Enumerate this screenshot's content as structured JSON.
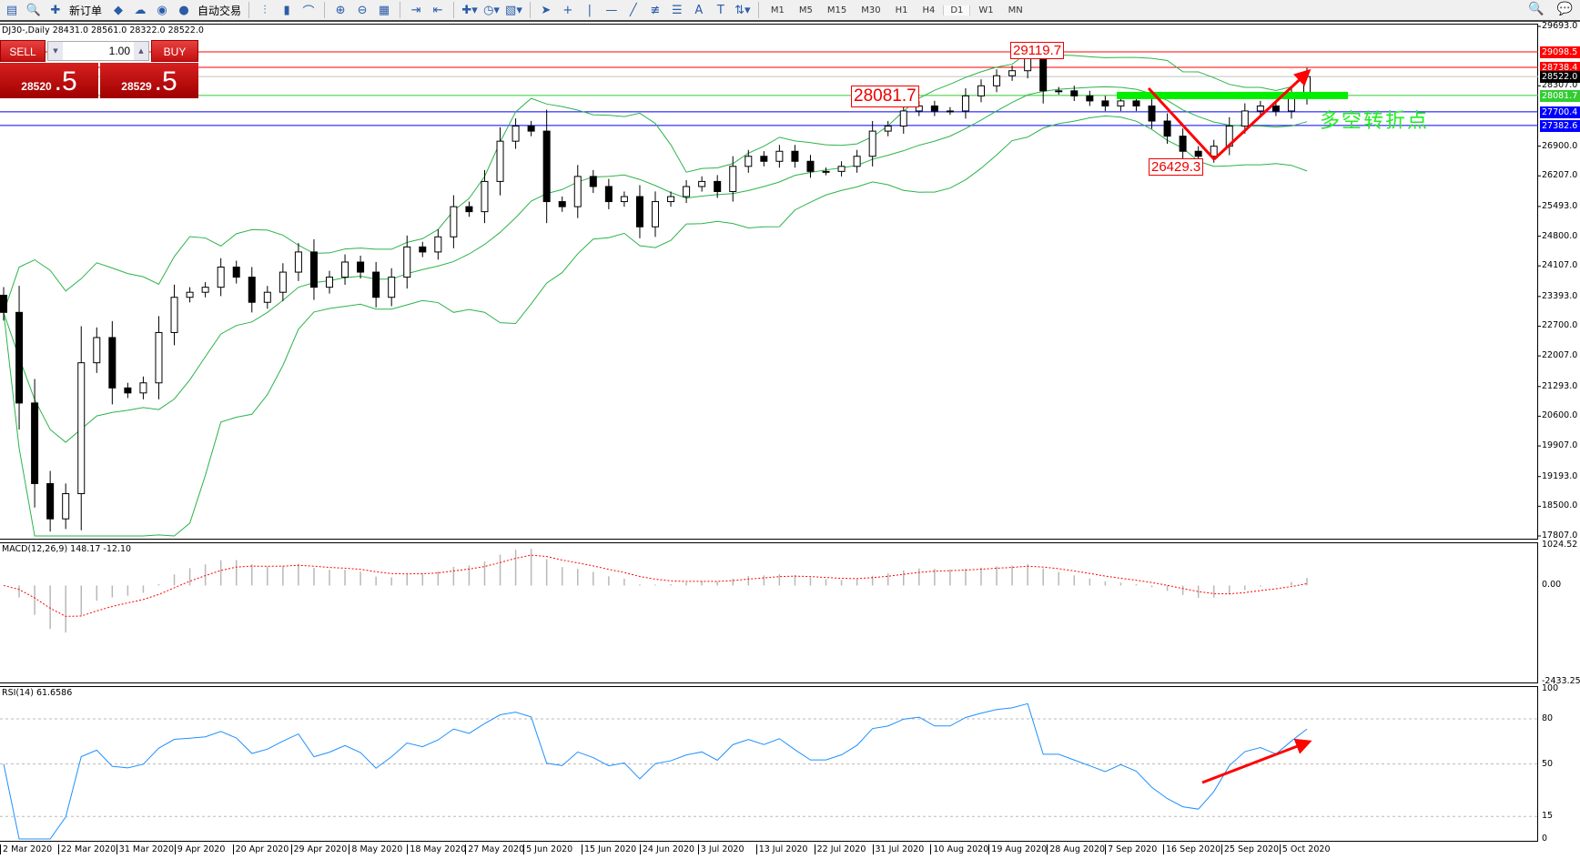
{
  "toolbar": {
    "new_order": "新订单",
    "auto_trading": "自动交易",
    "icons": [
      "new-chart-icon",
      "profiles-icon",
      "new-order-icon",
      "metaeditor-icon",
      "data-folder-icon",
      "signals-icon",
      "auto-trading-icon",
      "bar-chart-icon",
      "candlestick-icon",
      "line-chart-icon",
      "zoom-in-icon",
      "zoom-out-icon",
      "tile-windows-icon",
      "autoscroll-icon",
      "chart-shift-icon",
      "indicators-icon",
      "periods-icon",
      "templates-icon",
      "cursor-icon",
      "crosshair-icon",
      "vertical-line-icon",
      "horizontal-line-icon",
      "trendline-icon",
      "fibonacci-icon",
      "fibo-fan-icon",
      "text-icon",
      "text-label-icon",
      "arrows-icon",
      "search-icon",
      "chat-icon"
    ],
    "timeframes": [
      "M1",
      "M5",
      "M15",
      "M30",
      "H1",
      "H4",
      "D1",
      "W1",
      "MN"
    ],
    "active_timeframe": "D1"
  },
  "chart": {
    "title": "DJ30-,Daily  28431.0 28561.0 28322.0 28522.0",
    "symbol": "DJ30-",
    "period": "Daily",
    "open": 28431.0,
    "high": 28561.0,
    "low": 28322.0,
    "close": 28522.0
  },
  "trade_panel": {
    "sell_label": "SELL",
    "buy_label": "BUY",
    "lot": "1.00",
    "sell_main": "28520",
    "sell_big": ".5",
    "buy_main": "28529",
    "buy_big": ".5"
  },
  "price_axis": {
    "max": 29693.0,
    "min": 17807.0,
    "ticks": [
      "29693.0",
      "28307.0",
      "26900.0",
      "26207.0",
      "25493.0",
      "24800.0",
      "24107.0",
      "23393.0",
      "22700.0",
      "22007.0",
      "21293.0",
      "20600.0",
      "19907.0",
      "19193.0",
      "18500.0",
      "17807.0"
    ]
  },
  "levels": [
    {
      "price": "29098.5",
      "color": "#ff0000"
    },
    {
      "price": "28738.4",
      "color": "#ff0000"
    },
    {
      "price": "28522.0",
      "color": "#000000",
      "line": "#c0c0c0"
    },
    {
      "price": "28081.7",
      "color": "#33cc33",
      "line": "#33cc33"
    },
    {
      "price": "27700.4",
      "color": "#0000ff"
    },
    {
      "price": "27382.6",
      "color": "#0000ff"
    }
  ],
  "annotations": {
    "high": "29119.7",
    "pivot": "28081.7",
    "low": "26429.3",
    "pivot_text": "多空转折点",
    "arrow_color": "#ff0000",
    "pivot_line_color": "#00ee00"
  },
  "macd": {
    "label": "MACD(12,26,9) 148.17 -12.10",
    "max_label": "1024.52",
    "zero_label": "0.00",
    "min_label": "-2433.25",
    "max": 1024.52,
    "min": -2433.25
  },
  "rsi": {
    "label": "RSI(14) 61.6586",
    "levels": [
      "100",
      "80",
      "50",
      "15",
      "0"
    ]
  },
  "date_axis": [
    "2 Mar 2020",
    "22 Mar 2020",
    "31 Mar 2020",
    "9 Apr 2020",
    "20 Apr 2020",
    "29 Apr 2020",
    "8 May 2020",
    "18 May 2020",
    "27 May 2020",
    "5 Jun 2020",
    "15 Jun 2020",
    "24 Jun 2020",
    "3 Jul 2020",
    "13 Jul 2020",
    "22 Jul 2020",
    "31 Jul 2020",
    "10 Aug 2020",
    "19 Aug 2020",
    "28 Aug 2020",
    "7 Sep 2020",
    "16 Sep 2020",
    "25 Sep 2020",
    "5 Oct 2020"
  ],
  "chart_data": {
    "type": "candlestick",
    "xlim": [
      "2 Mar 2020",
      "5 Oct 2020"
    ],
    "ylim": [
      17807.0,
      29693.0
    ],
    "close": [
      23022,
      20908,
      19029,
      18206,
      18794,
      21847,
      22435,
      21260,
      21143,
      21378,
      22552,
      23374,
      23491,
      23609,
      24079,
      23844,
      23257,
      23491,
      23961,
      24431,
      23609,
      23844,
      24196,
      23961,
      23374,
      23844,
      24549,
      24431,
      24784,
      25488,
      25371,
      26076,
      27015,
      27368,
      27250,
      25606,
      25488,
      26193,
      25958,
      25606,
      25723,
      25018,
      25606,
      25723,
      25958,
      26076,
      25841,
      26428,
      26663,
      26546,
      26780,
      26546,
      26311,
      26311,
      26428,
      26663,
      27250,
      27368,
      27720,
      27837,
      27720,
      27720,
      28072,
      28307,
      28542,
      28659,
      29012,
      28190,
      28190,
      28072,
      27955,
      27837,
      27955,
      27837,
      27485,
      27133,
      26780,
      26663,
      26898,
      27368,
      27720,
      27837,
      27720,
      28072,
      28522
    ],
    "overlays": [
      "Bollinger Bands"
    ],
    "bullish_color": "#ffffff",
    "bearish_color": "#000000",
    "band_color": "#2db34a"
  }
}
